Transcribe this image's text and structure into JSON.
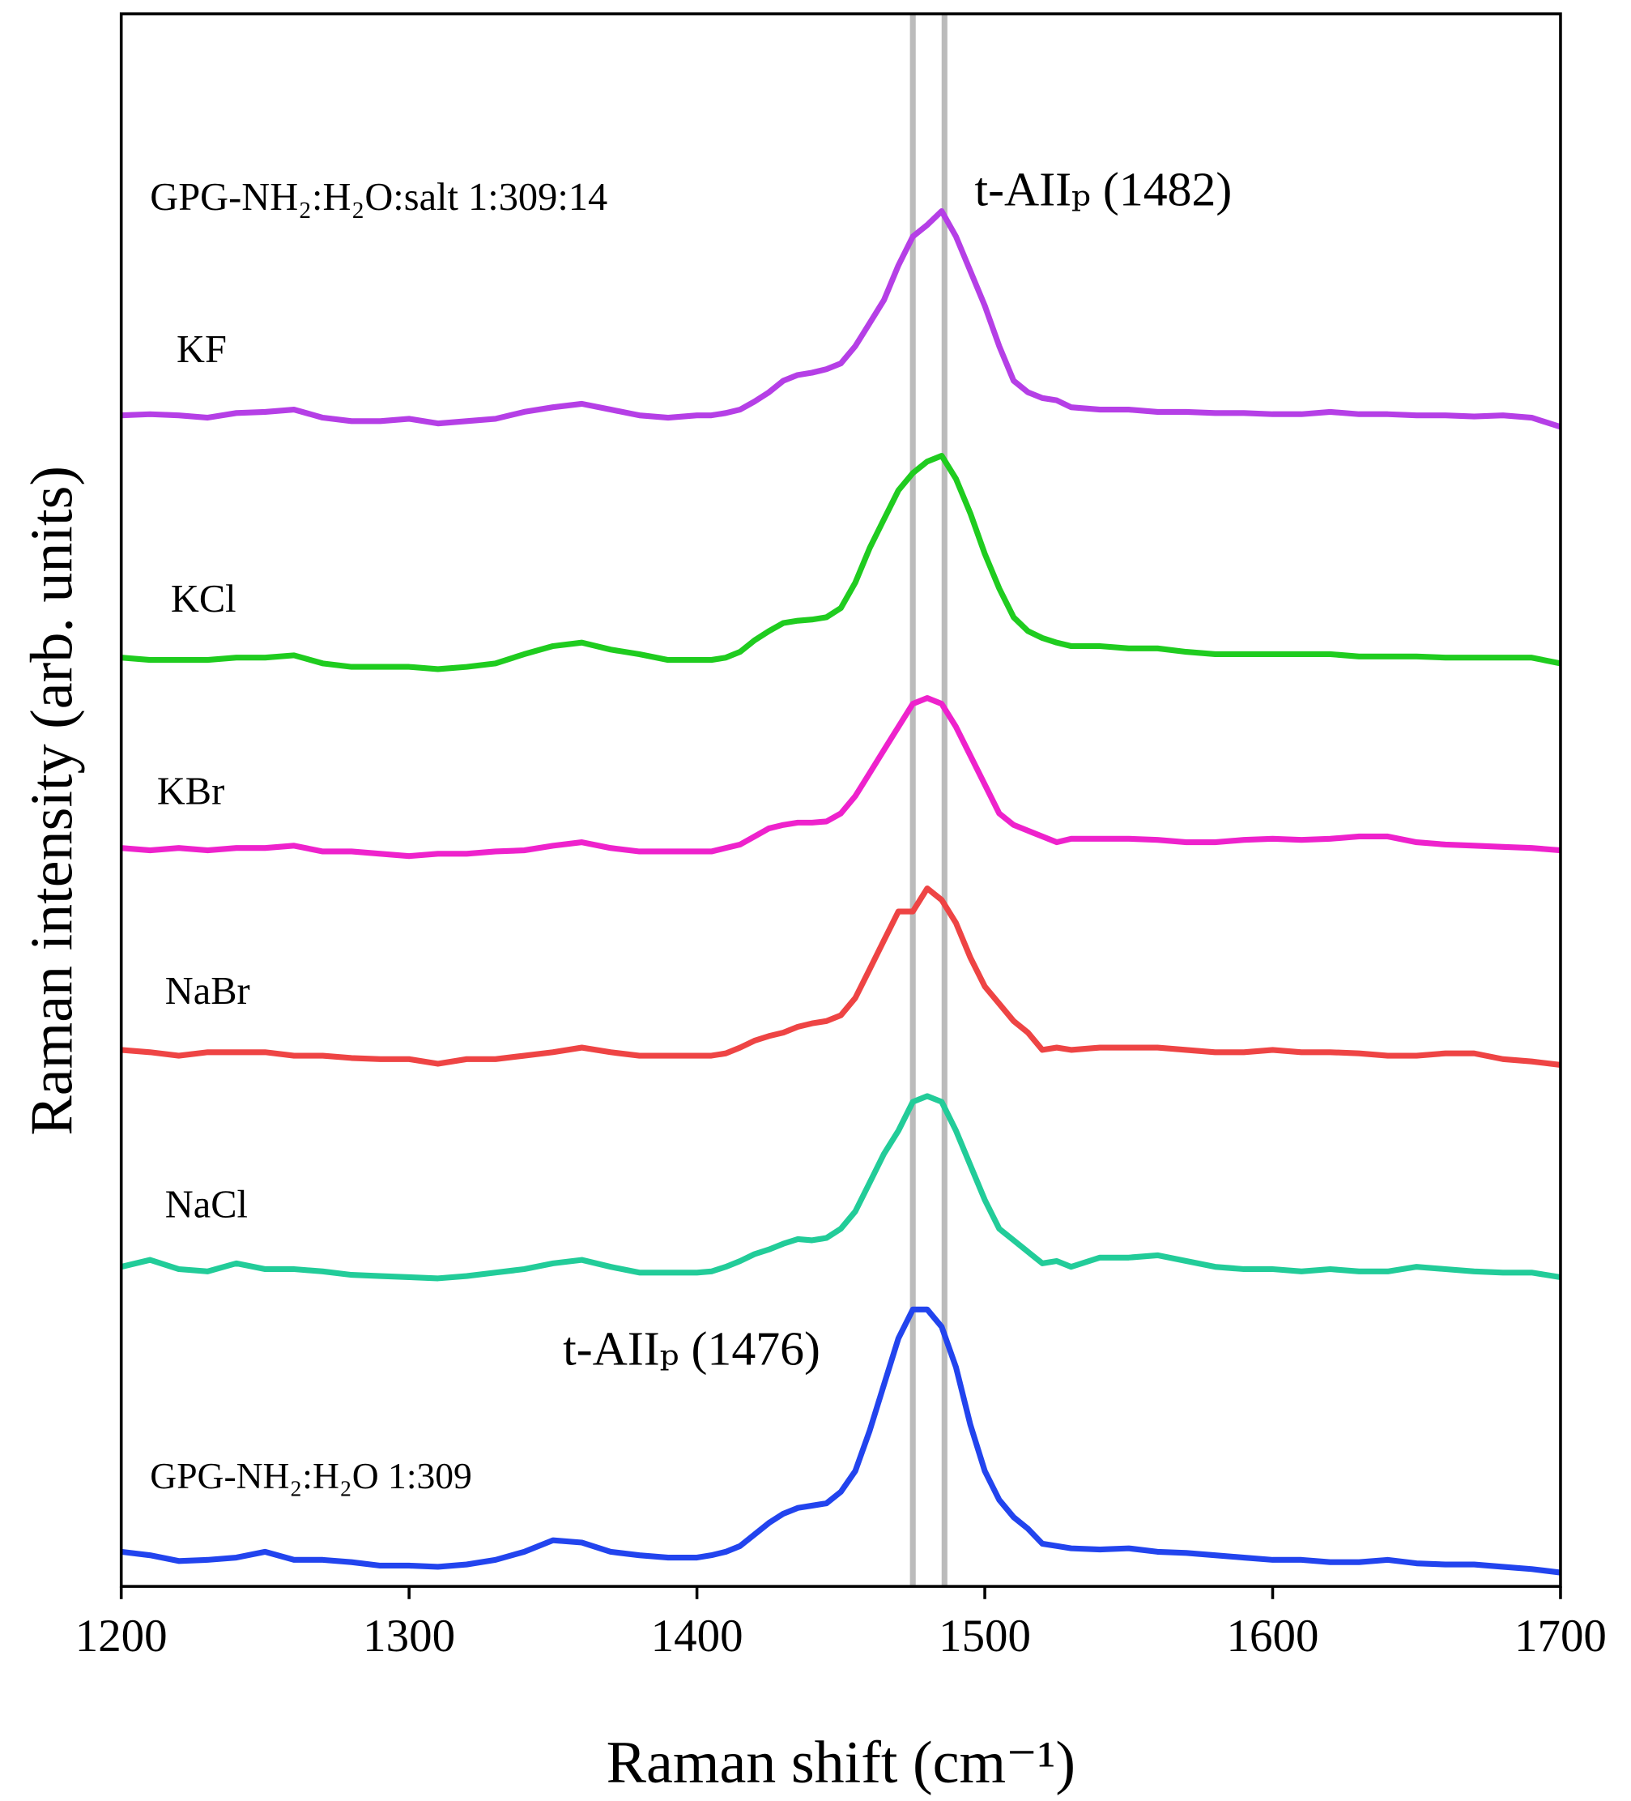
{
  "chart_data": {
    "type": "line",
    "xlabel": "Raman shift (cm⁻¹)",
    "ylabel": "Raman intensity (arb. units)",
    "xlim": [
      1200,
      1700
    ],
    "xticks": [
      1200,
      1300,
      1400,
      1500,
      1600,
      1700
    ],
    "ylim": [
      0,
      1363
    ],
    "reference_lines": [
      1475,
      1486
    ],
    "reference_color": "#bbbbbb",
    "annotations": [
      "GPG-NH₂:H₂O:salt 1:309:14",
      "t-AIIₚ (1482)",
      "t-AIIₚ (1476)"
    ],
    "x": [
      1200,
      1210,
      1220,
      1230,
      1240,
      1250,
      1260,
      1270,
      1280,
      1290,
      1300,
      1310,
      1320,
      1330,
      1340,
      1350,
      1360,
      1370,
      1380,
      1390,
      1400,
      1405,
      1410,
      1415,
      1420,
      1425,
      1430,
      1435,
      1440,
      1445,
      1450,
      1455,
      1460,
      1465,
      1470,
      1475,
      1480,
      1485,
      1490,
      1495,
      1500,
      1505,
      1510,
      1515,
      1520,
      1525,
      1530,
      1540,
      1550,
      1560,
      1570,
      1580,
      1590,
      1600,
      1610,
      1620,
      1630,
      1640,
      1650,
      1660,
      1670,
      1680,
      1690,
      1700
    ],
    "series": [
      {
        "name": "KF",
        "color": "#b53fe6",
        "values": [
          1015,
          1016,
          1015,
          1013,
          1017,
          1018,
          1020,
          1013,
          1010,
          1010,
          1012,
          1008,
          1010,
          1012,
          1018,
          1022,
          1025,
          1020,
          1015,
          1013,
          1015,
          1015,
          1017,
          1020,
          1027,
          1035,
          1045,
          1050,
          1052,
          1055,
          1060,
          1075,
          1095,
          1115,
          1145,
          1170,
          1180,
          1192,
          1170,
          1140,
          1110,
          1075,
          1045,
          1035,
          1030,
          1028,
          1022,
          1020,
          1020,
          1018,
          1018,
          1017,
          1017,
          1016,
          1016,
          1018,
          1016,
          1016,
          1015,
          1015,
          1014,
          1015,
          1013,
          1005
        ]
      },
      {
        "name": "KCl",
        "color": "#1fcc1f",
        "values": [
          805,
          803,
          803,
          803,
          805,
          805,
          807,
          800,
          797,
          797,
          797,
          795,
          797,
          800,
          808,
          815,
          818,
          812,
          808,
          803,
          803,
          803,
          805,
          810,
          820,
          828,
          835,
          837,
          838,
          840,
          848,
          870,
          900,
          925,
          950,
          965,
          975,
          980,
          960,
          930,
          895,
          865,
          840,
          828,
          822,
          818,
          815,
          815,
          813,
          813,
          810,
          808,
          808,
          808,
          808,
          808,
          806,
          806,
          806,
          805,
          805,
          805,
          805,
          800
        ]
      },
      {
        "name": "KBr",
        "color": "#ee22cc",
        "values": [
          640,
          638,
          640,
          638,
          640,
          640,
          642,
          637,
          637,
          635,
          633,
          635,
          635,
          637,
          638,
          642,
          645,
          640,
          637,
          637,
          637,
          637,
          640,
          643,
          650,
          657,
          660,
          662,
          662,
          663,
          670,
          685,
          705,
          725,
          745,
          765,
          770,
          765,
          745,
          720,
          695,
          670,
          660,
          655,
          650,
          645,
          648,
          648,
          648,
          647,
          645,
          645,
          647,
          648,
          647,
          648,
          650,
          650,
          645,
          643,
          642,
          641,
          640,
          638
        ]
      },
      {
        "name": "NaBr",
        "color": "#ee4444",
        "values": [
          465,
          463,
          460,
          463,
          463,
          463,
          460,
          460,
          458,
          457,
          457,
          453,
          457,
          457,
          460,
          463,
          467,
          463,
          460,
          460,
          460,
          460,
          462,
          467,
          473,
          477,
          480,
          485,
          488,
          490,
          495,
          510,
          535,
          560,
          585,
          585,
          605,
          595,
          575,
          545,
          520,
          505,
          490,
          480,
          465,
          467,
          465,
          467,
          467,
          467,
          465,
          463,
          463,
          465,
          463,
          463,
          462,
          460,
          460,
          462,
          462,
          457,
          455,
          452
        ]
      },
      {
        "name": "NaCl",
        "color": "#22cc99",
        "values": [
          277,
          283,
          275,
          273,
          280,
          275,
          275,
          273,
          270,
          269,
          268,
          267,
          269,
          272,
          275,
          280,
          283,
          277,
          272,
          272,
          272,
          273,
          277,
          282,
          288,
          292,
          297,
          301,
          300,
          302,
          310,
          325,
          350,
          375,
          395,
          420,
          425,
          420,
          395,
          365,
          335,
          310,
          300,
          290,
          280,
          282,
          277,
          285,
          285,
          287,
          282,
          277,
          275,
          275,
          273,
          275,
          273,
          273,
          277,
          275,
          273,
          272,
          272,
          268
        ]
      },
      {
        "name": "GPG-NH₂:H₂O 1:309",
        "color": "#2244ee",
        "values": [
          30,
          27,
          22,
          23,
          25,
          30,
          23,
          23,
          21,
          18,
          18,
          17,
          19,
          23,
          30,
          40,
          38,
          30,
          27,
          25,
          25,
          27,
          30,
          35,
          45,
          55,
          63,
          68,
          70,
          72,
          82,
          100,
          135,
          175,
          215,
          240,
          240,
          225,
          190,
          140,
          100,
          75,
          60,
          50,
          37,
          35,
          33,
          32,
          33,
          30,
          29,
          27,
          25,
          23,
          23,
          21,
          21,
          23,
          20,
          19,
          19,
          17,
          15,
          12
        ]
      }
    ]
  }
}
